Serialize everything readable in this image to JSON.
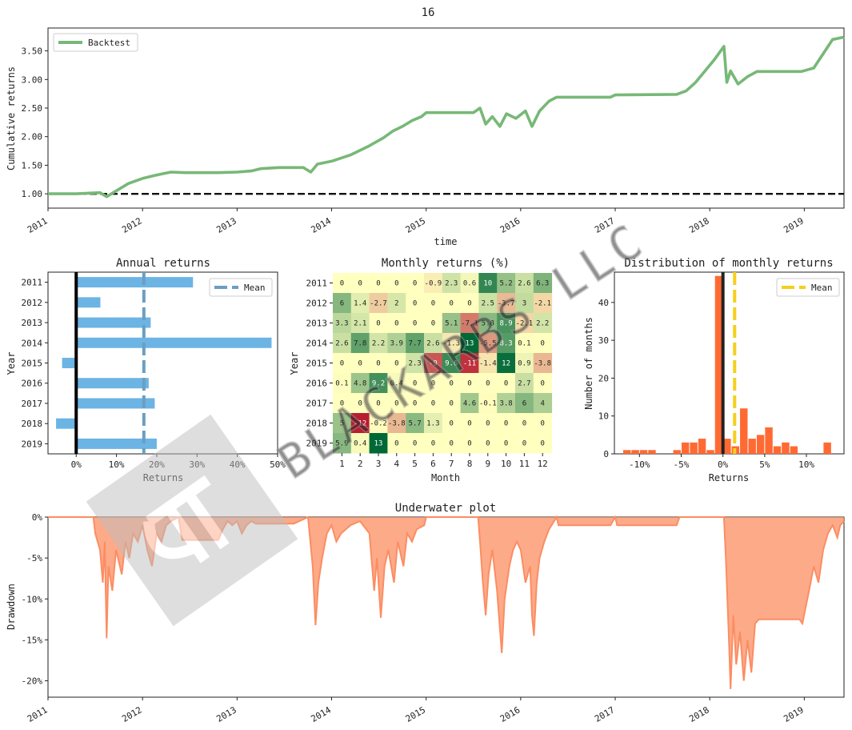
{
  "figure_title": "16",
  "colors": {
    "backtest": "#77b877",
    "annual_bar": "#6cb4e4",
    "annual_mean": "#6b9ec2",
    "hist_bar": "#ff6a33",
    "hist_mean": "#f5cf1b",
    "underwater": "#fc8d62",
    "heat_low": "#b5152b",
    "heat_mid": "#ffffbf",
    "heat_high": "#006837"
  },
  "watermark": "BLACKARBS LLC",
  "chart_data": [
    {
      "id": "cumulative",
      "type": "line",
      "title": "",
      "xlabel": "time",
      "ylabel": "Cumulative returns",
      "x_ticks": [
        "2011",
        "2012",
        "2013",
        "2014",
        "2015",
        "2016",
        "2017",
        "2018",
        "2019"
      ],
      "y_ticks": [
        "1.00",
        "1.50",
        "2.00",
        "2.50",
        "3.00",
        "3.50"
      ],
      "ylim": [
        0.75,
        3.9
      ],
      "xlim": [
        2011.0,
        2019.42
      ],
      "legend": {
        "label": "Backtest",
        "placement": "top-left"
      },
      "reference_line": 1.0,
      "series": [
        {
          "name": "Backtest",
          "points": [
            [
              2011.0,
              1.0
            ],
            [
              2011.3,
              1.0
            ],
            [
              2011.55,
              1.02
            ],
            [
              2011.62,
              0.95
            ],
            [
              2011.7,
              1.03
            ],
            [
              2011.85,
              1.18
            ],
            [
              2012.0,
              1.27
            ],
            [
              2012.15,
              1.33
            ],
            [
              2012.3,
              1.38
            ],
            [
              2012.45,
              1.37
            ],
            [
              2012.8,
              1.37
            ],
            [
              2013.0,
              1.38
            ],
            [
              2013.15,
              1.4
            ],
            [
              2013.25,
              1.44
            ],
            [
              2013.45,
              1.46
            ],
            [
              2013.7,
              1.46
            ],
            [
              2013.78,
              1.38
            ],
            [
              2013.85,
              1.52
            ],
            [
              2014.0,
              1.57
            ],
            [
              2014.2,
              1.68
            ],
            [
              2014.4,
              1.84
            ],
            [
              2014.55,
              1.98
            ],
            [
              2014.65,
              2.1
            ],
            [
              2014.75,
              2.18
            ],
            [
              2014.85,
              2.28
            ],
            [
              2014.95,
              2.35
            ],
            [
              2015.0,
              2.42
            ],
            [
              2015.5,
              2.42
            ],
            [
              2015.57,
              2.5
            ],
            [
              2015.63,
              2.22
            ],
            [
              2015.7,
              2.35
            ],
            [
              2015.78,
              2.18
            ],
            [
              2015.85,
              2.4
            ],
            [
              2015.95,
              2.32
            ],
            [
              2016.05,
              2.45
            ],
            [
              2016.12,
              2.18
            ],
            [
              2016.2,
              2.45
            ],
            [
              2016.3,
              2.62
            ],
            [
              2016.38,
              2.69
            ],
            [
              2016.95,
              2.69
            ],
            [
              2017.0,
              2.73
            ],
            [
              2017.65,
              2.74
            ],
            [
              2017.75,
              2.8
            ],
            [
              2017.85,
              2.95
            ],
            [
              2017.95,
              3.15
            ],
            [
              2018.05,
              3.35
            ],
            [
              2018.15,
              3.58
            ],
            [
              2018.18,
              2.95
            ],
            [
              2018.22,
              3.15
            ],
            [
              2018.3,
              2.92
            ],
            [
              2018.4,
              3.05
            ],
            [
              2018.5,
              3.14
            ],
            [
              2018.97,
              3.14
            ],
            [
              2019.1,
              3.2
            ],
            [
              2019.2,
              3.45
            ],
            [
              2019.3,
              3.7
            ],
            [
              2019.42,
              3.74
            ]
          ]
        }
      ]
    },
    {
      "id": "annual",
      "type": "bar",
      "orientation": "horizontal",
      "title": "Annual returns",
      "xlabel": "Returns",
      "ylabel": "Year",
      "categories": [
        "2011",
        "2012",
        "2013",
        "2014",
        "2015",
        "2016",
        "2017",
        "2018",
        "2019"
      ],
      "values": [
        29,
        6,
        18.5,
        48.5,
        -3.5,
        18,
        19.5,
        -5,
        20
      ],
      "mean": 16.8,
      "xlim": [
        -7,
        50
      ],
      "x_ticks": [
        "0%",
        "10%",
        "20%",
        "30%",
        "40%",
        "50%"
      ],
      "legend": {
        "label": "Mean",
        "placement": "top-right"
      }
    },
    {
      "id": "monthly",
      "type": "heatmap",
      "title": "Monthly returns (%)",
      "xlabel": "Month",
      "ylabel": "Year",
      "rows": [
        "2011",
        "2012",
        "2013",
        "2014",
        "2015",
        "2016",
        "2017",
        "2018",
        "2019"
      ],
      "cols": [
        "1",
        "2",
        "3",
        "4",
        "5",
        "6",
        "7",
        "8",
        "9",
        "10",
        "11",
        "12"
      ],
      "cells": [
        [
          "0",
          "0",
          "0",
          "0",
          "0",
          "-0.9",
          "2.3",
          "0.6",
          "10",
          "5.2",
          "2.6",
          "6.3"
        ],
        [
          "6",
          "1.4",
          "-2.7",
          "2",
          "0",
          "0",
          "0",
          "0",
          "2.5",
          "-3.7",
          "3",
          "-2.1"
        ],
        [
          "3.3",
          "2.1",
          "0",
          "0",
          "0",
          "0",
          "5.1",
          "-7.1",
          "5.8",
          "8.9",
          "-2.1",
          "2.2"
        ],
        [
          "2.6",
          "7.8",
          "2.2",
          "3.9",
          "7.7",
          "2.6",
          "-1.3",
          "13",
          "-5.5",
          "8.3",
          "0.1",
          "0"
        ],
        [
          "0",
          "0",
          "0",
          "0",
          "2.3",
          "-9",
          "9.6",
          "-11",
          "-1.4",
          "12",
          "0.9",
          "-3.8"
        ],
        [
          "0.1",
          "4.8",
          "9.2",
          "0.4",
          "0",
          "0",
          "0",
          "0",
          "0",
          "0",
          "2.7",
          "0"
        ],
        [
          "0",
          "0",
          "0",
          "0",
          "0",
          "0",
          "0",
          "4.6",
          "-0.1",
          "3.8",
          "6",
          "4"
        ],
        [
          "5",
          "-12",
          "-0.2",
          "-3.8",
          "5.7",
          "1.3",
          "0",
          "0",
          "0",
          "0",
          "0",
          "0"
        ],
        [
          "5.9",
          "0.4",
          "13",
          "0",
          "0",
          "0",
          "0",
          "0",
          "0",
          "0",
          "0",
          "0"
        ]
      ]
    },
    {
      "id": "distribution",
      "type": "bar",
      "title": "Distribution of monthly returns",
      "xlabel": "Returns",
      "ylabel": "Number of months",
      "bins_left": [
        -12,
        -11,
        -10,
        -9,
        -6,
        -5,
        -4,
        -3,
        -2,
        -1,
        0,
        1,
        2,
        3,
        4,
        5,
        6,
        7,
        8,
        9,
        10,
        12
      ],
      "bin_width": 1,
      "counts": [
        1,
        1,
        1,
        1,
        1,
        3,
        3,
        4,
        1,
        47,
        4,
        2,
        12,
        4,
        5,
        7,
        2,
        3,
        2,
        0,
        0,
        3
      ],
      "mean": 1.4,
      "xlim": [
        -13,
        14.5
      ],
      "ylim": [
        0,
        48
      ],
      "x_ticks": [
        "-10%",
        "-5%",
        "0%",
        "5%",
        "10%"
      ],
      "y_ticks": [
        "0",
        "10",
        "20",
        "30",
        "40"
      ],
      "legend": {
        "label": "Mean",
        "placement": "top-right"
      }
    },
    {
      "id": "underwater",
      "type": "area",
      "title": "Underwater plot",
      "xlabel": "",
      "ylabel": "Drawdown",
      "x_ticks": [
        "2011",
        "2012",
        "2013",
        "2014",
        "2015",
        "2016",
        "2017",
        "2018",
        "2019"
      ],
      "y_ticks": [
        "0%",
        "-5%",
        "-10%",
        "-15%",
        "-20%"
      ],
      "ylim": [
        -22,
        0
      ],
      "xlim": [
        2011.0,
        2019.42
      ],
      "series": [
        {
          "name": "",
          "points": [
            [
              2011.0,
              0
            ],
            [
              2011.48,
              0
            ],
            [
              2011.5,
              -2
            ],
            [
              2011.55,
              -4
            ],
            [
              2011.58,
              -8
            ],
            [
              2011.6,
              -3
            ],
            [
              2011.62,
              -14.8
            ],
            [
              2011.64,
              -6
            ],
            [
              2011.68,
              -9
            ],
            [
              2011.72,
              -4
            ],
            [
              2011.78,
              -7
            ],
            [
              2011.82,
              -3
            ],
            [
              2011.86,
              -5
            ],
            [
              2011.9,
              -2
            ],
            [
              2011.95,
              -3
            ],
            [
              2012.0,
              -1
            ],
            [
              2012.05,
              -4
            ],
            [
              2012.1,
              -6
            ],
            [
              2012.15,
              -2
            ],
            [
              2012.2,
              -3
            ],
            [
              2012.25,
              -1
            ],
            [
              2012.3,
              -0.5
            ],
            [
              2012.38,
              0
            ],
            [
              2012.42,
              -2.8
            ],
            [
              2012.8,
              -2.8
            ],
            [
              2012.85,
              -1.5
            ],
            [
              2012.9,
              -0.5
            ],
            [
              2012.95,
              -1
            ],
            [
              2013.0,
              -0.5
            ],
            [
              2013.05,
              -2
            ],
            [
              2013.1,
              -1
            ],
            [
              2013.15,
              -0.5
            ],
            [
              2013.2,
              -0.8
            ],
            [
              2013.3,
              -0.8
            ],
            [
              2013.6,
              -0.8
            ],
            [
              2013.75,
              0
            ],
            [
              2013.8,
              -6
            ],
            [
              2013.83,
              -13.2
            ],
            [
              2013.86,
              -8
            ],
            [
              2013.9,
              -5
            ],
            [
              2013.95,
              -2
            ],
            [
              2014.0,
              -1
            ],
            [
              2014.05,
              -3
            ],
            [
              2014.1,
              -2
            ],
            [
              2014.2,
              -1
            ],
            [
              2014.3,
              -0.5
            ],
            [
              2014.4,
              -2
            ],
            [
              2014.45,
              -9
            ],
            [
              2014.48,
              -5
            ],
            [
              2014.52,
              -12.3
            ],
            [
              2014.56,
              -6
            ],
            [
              2014.6,
              -4
            ],
            [
              2014.66,
              -8
            ],
            [
              2014.7,
              -3
            ],
            [
              2014.76,
              -6
            ],
            [
              2014.8,
              -2
            ],
            [
              2014.85,
              -3
            ],
            [
              2014.9,
              -1.5
            ],
            [
              2014.98,
              -1
            ],
            [
              2015.0,
              0
            ],
            [
              2015.55,
              0
            ],
            [
              2015.57,
              -3
            ],
            [
              2015.6,
              -8
            ],
            [
              2015.63,
              -12
            ],
            [
              2015.66,
              -7
            ],
            [
              2015.7,
              -4
            ],
            [
              2015.75,
              -9
            ],
            [
              2015.8,
              -16.6
            ],
            [
              2015.83,
              -10
            ],
            [
              2015.88,
              -6
            ],
            [
              2015.92,
              -4
            ],
            [
              2015.96,
              -3
            ],
            [
              2016.0,
              -4
            ],
            [
              2016.05,
              -8
            ],
            [
              2016.1,
              -6
            ],
            [
              2016.12,
              -12
            ],
            [
              2016.14,
              -14.5
            ],
            [
              2016.17,
              -8
            ],
            [
              2016.2,
              -5
            ],
            [
              2016.25,
              -3
            ],
            [
              2016.3,
              -1.5
            ],
            [
              2016.38,
              0
            ],
            [
              2016.4,
              -1
            ],
            [
              2016.95,
              -1
            ],
            [
              2017.0,
              0
            ],
            [
              2017.02,
              -1
            ],
            [
              2017.65,
              -1
            ],
            [
              2017.68,
              0
            ],
            [
              2018.1,
              0
            ],
            [
              2018.15,
              0
            ],
            [
              2018.17,
              -5
            ],
            [
              2018.2,
              -14
            ],
            [
              2018.22,
              -21
            ],
            [
              2018.25,
              -12
            ],
            [
              2018.28,
              -18
            ],
            [
              2018.32,
              -14
            ],
            [
              2018.36,
              -20
            ],
            [
              2018.4,
              -15
            ],
            [
              2018.44,
              -19
            ],
            [
              2018.48,
              -13
            ],
            [
              2018.52,
              -12.5
            ],
            [
              2018.95,
              -12.5
            ],
            [
              2018.98,
              -13
            ],
            [
              2019.05,
              -9
            ],
            [
              2019.1,
              -6
            ],
            [
              2019.15,
              -8
            ],
            [
              2019.2,
              -4
            ],
            [
              2019.25,
              -2
            ],
            [
              2019.3,
              -1
            ],
            [
              2019.35,
              -2.5
            ],
            [
              2019.38,
              -1
            ],
            [
              2019.42,
              -0.5
            ]
          ]
        }
      ]
    }
  ]
}
